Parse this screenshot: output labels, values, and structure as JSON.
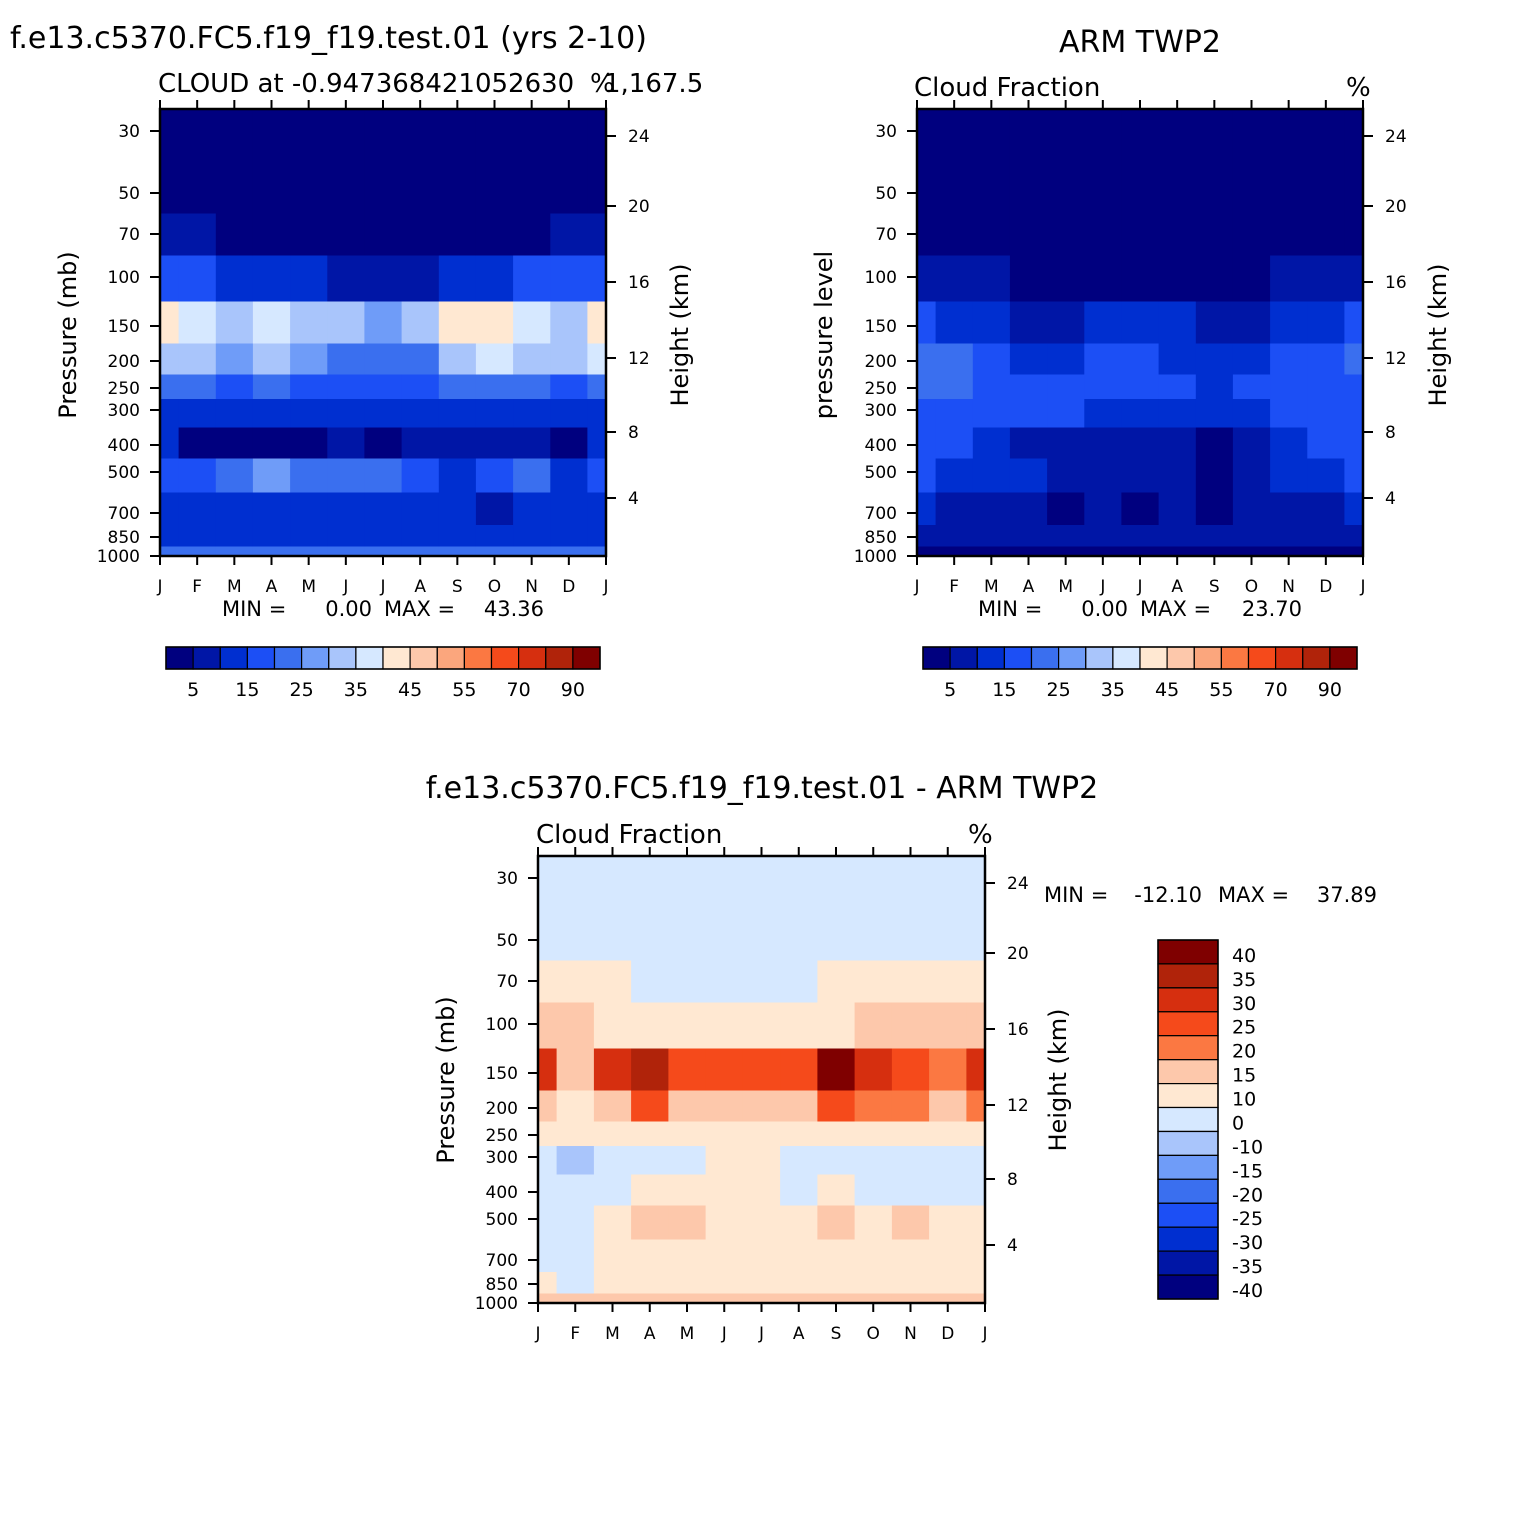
{
  "pressure_ticks": [
    "30",
    "50",
    "70",
    "100",
    "150",
    "200",
    "250",
    "300",
    "400",
    "500",
    "700",
    "850",
    "1000"
  ],
  "height_ticks": [
    "24",
    "20",
    "16",
    "12",
    "8",
    "4"
  ],
  "month_ticks": [
    "J",
    "F",
    "M",
    "A",
    "M",
    "J",
    "J",
    "A",
    "S",
    "O",
    "N",
    "D",
    "J"
  ],
  "palettes": {
    "cloud": [
      "#00007f",
      "#0016a6",
      "#002fd0",
      "#1c4ff5",
      "#3a6fef",
      "#6f9cf8",
      "#a9c5fb",
      "#d6e8ff",
      "#ffe8d2",
      "#fdc8ab",
      "#fba67d",
      "#fb7842",
      "#f54a1b",
      "#d62f0f",
      "#b0230a",
      "#7f0000"
    ],
    "diff": [
      "#00007f",
      "#0016a6",
      "#002fd0",
      "#1c4ff5",
      "#3a6fef",
      "#6f9cf8",
      "#a9c5fb",
      "#d6e8ff",
      "#ffe8d2",
      "#fdc8ab",
      "#fb7842",
      "#f54a1b",
      "#d62f0f",
      "#b0230a",
      "#7f0000"
    ]
  },
  "chart_data": [
    {
      "id": "model",
      "type": "heatmap",
      "figure_title": "f.e13.c5370.FC5.f19_f19.test.01 (yrs 2-10)",
      "title": "CLOUD at -0.947368421052630​1,167.5",
      "title_left": "CLOUD at -0.947368421052630",
      "title_right": "1,167.5",
      "units": "%",
      "ylabel": "Pressure (mb)",
      "y2label": "Height (km)",
      "min_label": "MIN =",
      "min": "0.00",
      "max_label": "MAX =",
      "max": "43.36",
      "colorbar_labels": [
        "5",
        "15",
        "25",
        "35",
        "45",
        "55",
        "70",
        "90"
      ],
      "months": [
        "J",
        "F",
        "M",
        "A",
        "M",
        "J",
        "J",
        "A",
        "S",
        "O",
        "N",
        "D",
        "J"
      ],
      "levels_mb": [
        30,
        50,
        70,
        100,
        150,
        200,
        250,
        300,
        400,
        500,
        700,
        850,
        1000
      ],
      "values": [
        [
          2,
          2,
          2,
          2,
          2,
          2,
          2,
          2,
          2,
          2,
          2,
          2,
          2
        ],
        [
          2,
          2,
          2,
          2,
          2,
          2,
          2,
          2,
          2,
          2,
          2,
          2,
          2
        ],
        [
          6,
          5,
          4,
          3,
          2,
          2,
          1,
          2,
          2,
          3,
          4,
          5,
          7
        ],
        [
          18,
          16,
          14,
          12,
          10,
          9,
          8,
          9,
          11,
          13,
          15,
          17,
          19
        ],
        [
          44,
          38,
          33,
          39,
          30,
          30,
          28,
          30,
          43,
          40,
          36,
          33,
          44
        ],
        [
          34,
          30,
          28,
          33,
          26,
          24,
          23,
          24,
          32,
          37,
          33,
          30,
          35
        ],
        [
          23,
          20,
          19,
          20,
          17,
          16,
          16,
          16,
          20,
          23,
          21,
          18,
          23
        ],
        [
          14,
          12,
          11,
          12,
          11,
          10,
          10,
          10,
          12,
          13,
          12,
          11,
          14
        ],
        [
          10,
          4,
          3,
          3,
          4,
          5,
          4,
          6,
          9,
          6,
          5,
          4,
          10
        ],
        [
          16,
          17,
          23,
          27,
          24,
          21,
          20,
          17,
          14,
          16,
          21,
          14,
          16
        ],
        [
          11,
          11,
          12,
          12,
          12,
          12,
          12,
          12,
          12,
          6,
          12,
          12,
          12
        ],
        [
          13,
          13,
          13,
          13,
          13,
          13,
          13,
          13,
          13,
          12,
          13,
          13,
          13
        ],
        [
          20,
          20,
          20,
          20,
          20,
          20,
          20,
          20,
          20,
          20,
          20,
          20,
          20
        ]
      ]
    },
    {
      "id": "obs",
      "type": "heatmap",
      "figure_title": "ARM TWP2",
      "title_left": "Cloud Fraction",
      "units": "%",
      "ylabel": "pressure level",
      "y2label": "Height (km)",
      "min_label": "MIN =",
      "min": "0.00",
      "max_label": "MAX =",
      "max": "23.70",
      "colorbar_labels": [
        "5",
        "15",
        "25",
        "35",
        "45",
        "55",
        "70",
        "90"
      ],
      "months": [
        "J",
        "F",
        "M",
        "A",
        "M",
        "J",
        "J",
        "A",
        "S",
        "O",
        "N",
        "D",
        "J"
      ],
      "levels_mb": [
        30,
        50,
        70,
        100,
        150,
        200,
        250,
        300,
        400,
        500,
        700,
        850,
        1000
      ],
      "values": [
        [
          1,
          1,
          1,
          1,
          1,
          1,
          1,
          1,
          1,
          1,
          1,
          1,
          1
        ],
        [
          1,
          1,
          1,
          1,
          1,
          1,
          1,
          1,
          1,
          1,
          1,
          1,
          1
        ],
        [
          2,
          2,
          1,
          1,
          1,
          1,
          1,
          1,
          1,
          1,
          1,
          1,
          2
        ],
        [
          6,
          6,
          5,
          4,
          4,
          3,
          3,
          3,
          3,
          4,
          5,
          6,
          7
        ],
        [
          15,
          14,
          12,
          9,
          9,
          11,
          11,
          10,
          7,
          9,
          12,
          13,
          16
        ],
        [
          24,
          23,
          16,
          13,
          13,
          17,
          17,
          13,
          11,
          14,
          17,
          18,
          20
        ],
        [
          20,
          20,
          16,
          15,
          15,
          16,
          16,
          15,
          14,
          15,
          16,
          16,
          18
        ],
        [
          19,
          17,
          16,
          16,
          15,
          14,
          14,
          14,
          13,
          14,
          16,
          17,
          18
        ],
        [
          17,
          15,
          13,
          8,
          8,
          8,
          8,
          8,
          3,
          8,
          10,
          15,
          17
        ],
        [
          15,
          14,
          13,
          10,
          9,
          9,
          9,
          9,
          3,
          8,
          10,
          14,
          15
        ],
        [
          10,
          9,
          9,
          9,
          3,
          9,
          4,
          9,
          3,
          8,
          9,
          9,
          10
        ],
        [
          8,
          8,
          8,
          8,
          8,
          8,
          8,
          8,
          7,
          8,
          8,
          8,
          8
        ],
        [
          4,
          4,
          4,
          4,
          4,
          4,
          4,
          4,
          4,
          4,
          4,
          4,
          4
        ]
      ]
    },
    {
      "id": "diff",
      "type": "heatmap",
      "figure_title": "f.e13.c5370.FC5.f19_f19.test.01 - ARM TWP2",
      "title_left": "Cloud Fraction",
      "units": "%",
      "ylabel": "Pressure (mb)",
      "y2label": "Height (km)",
      "min_label": "MIN =",
      "min": "-12.10",
      "max_label": "MAX =",
      "max": "37.89",
      "colorbar_labels": [
        "40",
        "35",
        "30",
        "25",
        "20",
        "15",
        "10",
        "0",
        "-10",
        "-15",
        "-20",
        "-25",
        "-30",
        "-35",
        "-40"
      ],
      "months": [
        "J",
        "F",
        "M",
        "A",
        "M",
        "J",
        "J",
        "A",
        "S",
        "O",
        "N",
        "D",
        "J"
      ],
      "levels_mb": [
        30,
        50,
        70,
        100,
        150,
        200,
        250,
        300,
        400,
        500,
        700,
        850,
        1000
      ],
      "values": [
        [
          -2,
          -2,
          -2,
          -2,
          -2,
          -2,
          -2,
          -2,
          -2,
          -2,
          -2,
          -2,
          -2
        ],
        [
          -1,
          -1,
          -1,
          -1,
          -1,
          -1,
          -1,
          -1,
          -1,
          -1,
          -1,
          -1,
          -1
        ],
        [
          3,
          3,
          1,
          -1,
          -1,
          -1,
          -1,
          -1,
          1,
          3,
          3,
          3,
          3
        ],
        [
          12,
          10,
          9,
          8,
          7,
          6,
          6,
          6,
          9,
          10,
          10,
          12,
          14
        ],
        [
          29,
          14,
          27,
          32,
          22,
          22,
          22,
          24,
          38,
          26,
          22,
          16,
          28
        ],
        [
          10,
          8,
          12,
          21,
          14,
          10,
          10,
          11,
          22,
          16,
          16,
          13,
          17
        ],
        [
          3,
          3,
          3,
          4,
          3,
          3,
          3,
          3,
          7,
          6,
          5,
          3,
          5
        ],
        [
          -5,
          -12,
          -5,
          -3,
          -3,
          2,
          2,
          -7,
          -2,
          -5,
          -7,
          -8,
          -6
        ],
        [
          -7,
          -7,
          -4,
          3,
          3,
          2,
          2,
          -3,
          2,
          -3,
          -5,
          -4,
          -7
        ],
        [
          -2,
          -3,
          3,
          12,
          11,
          8,
          3,
          5,
          12,
          5,
          11,
          2,
          2
        ],
        [
          -1,
          -7,
          2,
          3,
          3,
          2,
          2,
          3,
          6,
          3,
          3,
          2,
          2
        ],
        [
          2,
          -7,
          2,
          2,
          2,
          2,
          2,
          2,
          2,
          2,
          2,
          2,
          2
        ],
        [
          11,
          11,
          11,
          11,
          11,
          11,
          11,
          11,
          11,
          11,
          11,
          11,
          11
        ]
      ]
    }
  ]
}
